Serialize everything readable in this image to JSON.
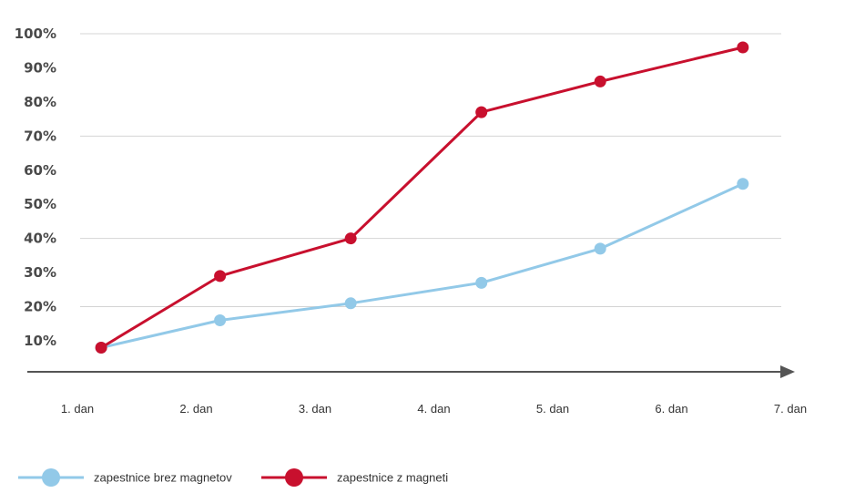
{
  "chart_data": {
    "type": "line",
    "title": "",
    "xlabel": "",
    "ylabel": "",
    "categories": [
      "1. dan",
      "2. dan",
      "3. dan",
      "4. dan",
      "5. dan",
      "6. dan",
      "7. dan"
    ],
    "y_ticks": [
      "10%",
      "20%",
      "30%",
      "40%",
      "50%",
      "60%",
      "70%",
      "80%",
      "90%",
      "100%"
    ],
    "ylim": [
      0,
      100
    ],
    "grid": "horizontal at 20%, 40%, 70%, 100%",
    "legend_position": "bottom-left",
    "series": [
      {
        "name": "zapestnice brez magnetov",
        "color": "#92c9e8",
        "points": [
          {
            "x": 1.2,
            "y": 8
          },
          {
            "x": 2.2,
            "y": 16
          },
          {
            "x": 3.3,
            "y": 21
          },
          {
            "x": 4.4,
            "y": 27
          },
          {
            "x": 5.4,
            "y": 37
          },
          {
            "x": 6.6,
            "y": 56
          }
        ]
      },
      {
        "name": "zapestnice z magneti",
        "color": "#c8102e",
        "points": [
          {
            "x": 1.2,
            "y": 8
          },
          {
            "x": 2.2,
            "y": 29
          },
          {
            "x": 3.3,
            "y": 40
          },
          {
            "x": 4.4,
            "y": 77
          },
          {
            "x": 5.4,
            "y": 86
          },
          {
            "x": 6.6,
            "y": 96
          }
        ]
      }
    ]
  }
}
